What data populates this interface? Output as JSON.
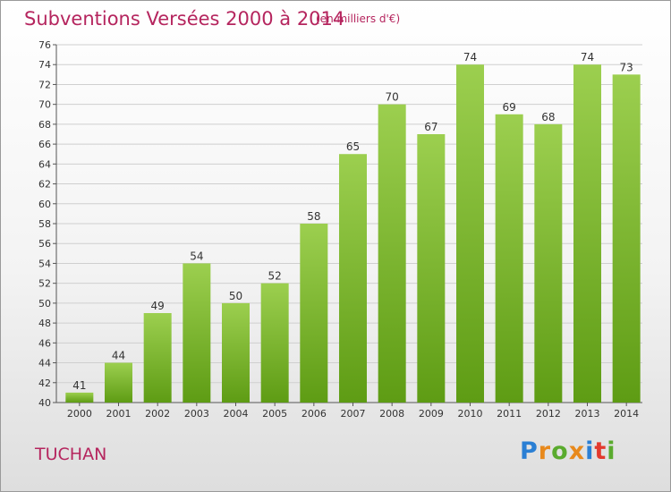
{
  "title": "Subventions Versées 2000 à 2014",
  "subtitle": "(en milliers d'€)",
  "commune": "TUCHAN",
  "logo": {
    "text": "Proxiti",
    "letters": [
      {
        "char": "P",
        "color": "#2a7fd4"
      },
      {
        "char": "r",
        "color": "#e8891c"
      },
      {
        "char": "o",
        "color": "#5aab2e"
      },
      {
        "char": "x",
        "color": "#e8891c"
      },
      {
        "char": "i",
        "color": "#2a7fd4"
      },
      {
        "char": "t",
        "color": "#e23a2e"
      },
      {
        "char": "i",
        "color": "#5aab2e"
      }
    ]
  },
  "chart_data": {
    "type": "bar",
    "categories": [
      "2000",
      "2001",
      "2002",
      "2003",
      "2004",
      "2005",
      "2006",
      "2007",
      "2008",
      "2009",
      "2010",
      "2011",
      "2012",
      "2013",
      "2014"
    ],
    "values": [
      41,
      44,
      49,
      54,
      50,
      52,
      58,
      65,
      70,
      67,
      74,
      69,
      68,
      74,
      73
    ],
    "title": "Subventions Versées 2000 à 2014",
    "subtitle": "(en milliers d'€)",
    "xlabel": "",
    "ylabel": "",
    "ylim": [
      40,
      76
    ],
    "yticks": [
      40,
      42,
      44,
      46,
      48,
      50,
      52,
      54,
      56,
      58,
      60,
      62,
      64,
      66,
      68,
      70,
      72,
      74,
      76
    ],
    "grid": true,
    "bar_color_top": "#9ccf4f",
    "bar_color_bottom": "#5e9c14"
  }
}
